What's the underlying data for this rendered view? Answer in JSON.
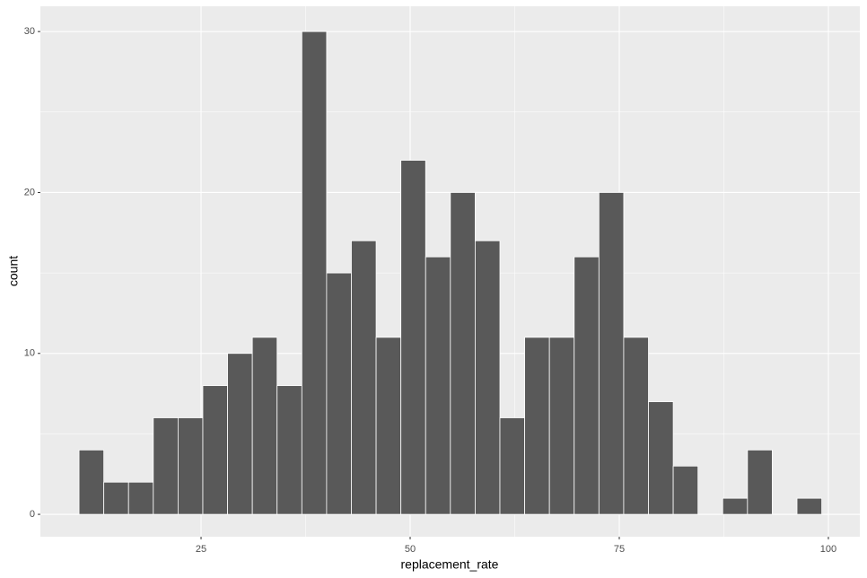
{
  "chart_data": {
    "type": "histogram",
    "x_label": "replacement_rate",
    "y_label": "count",
    "bins": [
      10.41,
      13.37,
      16.33,
      19.29,
      22.25,
      25.21,
      28.17,
      31.13,
      34.09,
      37.05,
      40.01,
      42.97,
      45.93,
      48.89,
      51.85,
      54.81,
      57.77,
      60.73,
      63.69,
      66.65,
      69.61,
      72.57,
      75.53,
      78.49,
      81.45,
      84.41,
      87.37,
      90.33,
      93.29,
      96.25,
      99.21
    ],
    "values": [
      4,
      2,
      2,
      6,
      6,
      8,
      10,
      11,
      8,
      30,
      15,
      17,
      11,
      22,
      16,
      20,
      17,
      6,
      11,
      11,
      16,
      20,
      11,
      7,
      3,
      0,
      1,
      4,
      0,
      1
    ],
    "color": "#595959",
    "xlim": [
      5.79,
      103.76
    ],
    "ylim": [
      -1.39,
      31.57
    ],
    "xticks": [
      25,
      50,
      75,
      100
    ],
    "yticks": [
      0,
      10,
      20,
      30
    ],
    "grid": true
  }
}
